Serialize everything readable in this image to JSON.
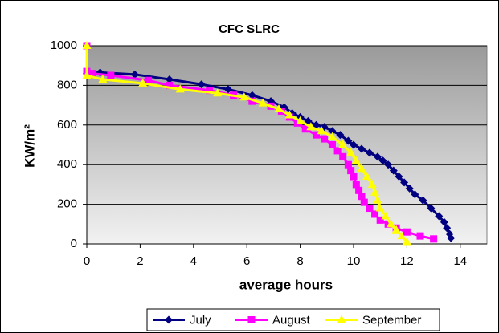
{
  "chart_data": {
    "type": "line",
    "title": "CFC SLRC",
    "xlabel": "average hours",
    "ylabel": "KW/m²",
    "xlim": [
      0,
      15
    ],
    "xticks": [
      0,
      2,
      4,
      6,
      8,
      10,
      12,
      14
    ],
    "ylim": [
      0,
      1000
    ],
    "yticks": [
      0,
      200,
      400,
      600,
      800,
      1000
    ],
    "grid": true,
    "legend": "bottom",
    "series": [
      {
        "name": "July",
        "color": "#000080",
        "marker": "diamond",
        "x": [
          0,
          0,
          0.5,
          1.8,
          3.1,
          4.3,
          5.3,
          6.2,
          6.9,
          7.4,
          7.7,
          8.0,
          8.3,
          8.6,
          8.9,
          9.2,
          9.5,
          9.8,
          10.0,
          10.3,
          10.6,
          10.9,
          11.1,
          11.3,
          11.5,
          11.7,
          11.9,
          12.1,
          12.3,
          12.6,
          12.9,
          13.2,
          13.4,
          13.5,
          13.6,
          13.65
        ],
        "values": [
          1000,
          860,
          865,
          855,
          830,
          805,
          780,
          750,
          720,
          690,
          660,
          640,
          620,
          600,
          590,
          570,
          550,
          520,
          500,
          480,
          460,
          440,
          420,
          400,
          370,
          340,
          310,
          280,
          250,
          220,
          180,
          140,
          110,
          80,
          50,
          30
        ]
      },
      {
        "name": "August",
        "color": "#FF00FF",
        "marker": "square",
        "x": [
          0,
          0,
          0.2,
          0.9,
          2.3,
          3.1,
          4.6,
          5.5,
          6.2,
          6.9,
          7.3,
          7.6,
          7.9,
          8.2,
          8.6,
          8.9,
          9.2,
          9.4,
          9.6,
          9.8,
          9.9,
          10.0,
          10.1,
          10.2,
          10.3,
          10.4,
          10.6,
          10.8,
          11.0,
          11.3,
          11.6,
          12.0,
          12.5,
          13.0
        ],
        "values": [
          1000,
          870,
          860,
          850,
          825,
          800,
          775,
          750,
          720,
          695,
          670,
          640,
          610,
          580,
          550,
          530,
          500,
          470,
          440,
          400,
          370,
          340,
          300,
          270,
          240,
          210,
          180,
          150,
          120,
          100,
          80,
          60,
          40,
          25
        ]
      },
      {
        "name": "September",
        "color": "#FFFF00",
        "marker": "triangle",
        "x": [
          0,
          0,
          0.6,
          2.1,
          3.5,
          4.9,
          5.9,
          6.6,
          7.2,
          7.6,
          8.0,
          8.4,
          8.8,
          9.2,
          9.6,
          9.9,
          10.1,
          10.3,
          10.5,
          10.7,
          10.8,
          10.9,
          11.0,
          11.2,
          11.4,
          11.6,
          11.8,
          12.0
        ],
        "values": [
          1000,
          850,
          830,
          810,
          780,
          760,
          740,
          710,
          680,
          650,
          620,
          590,
          570,
          540,
          500,
          460,
          420,
          380,
          340,
          300,
          260,
          220,
          180,
          140,
          100,
          70,
          40,
          10
        ]
      }
    ]
  }
}
